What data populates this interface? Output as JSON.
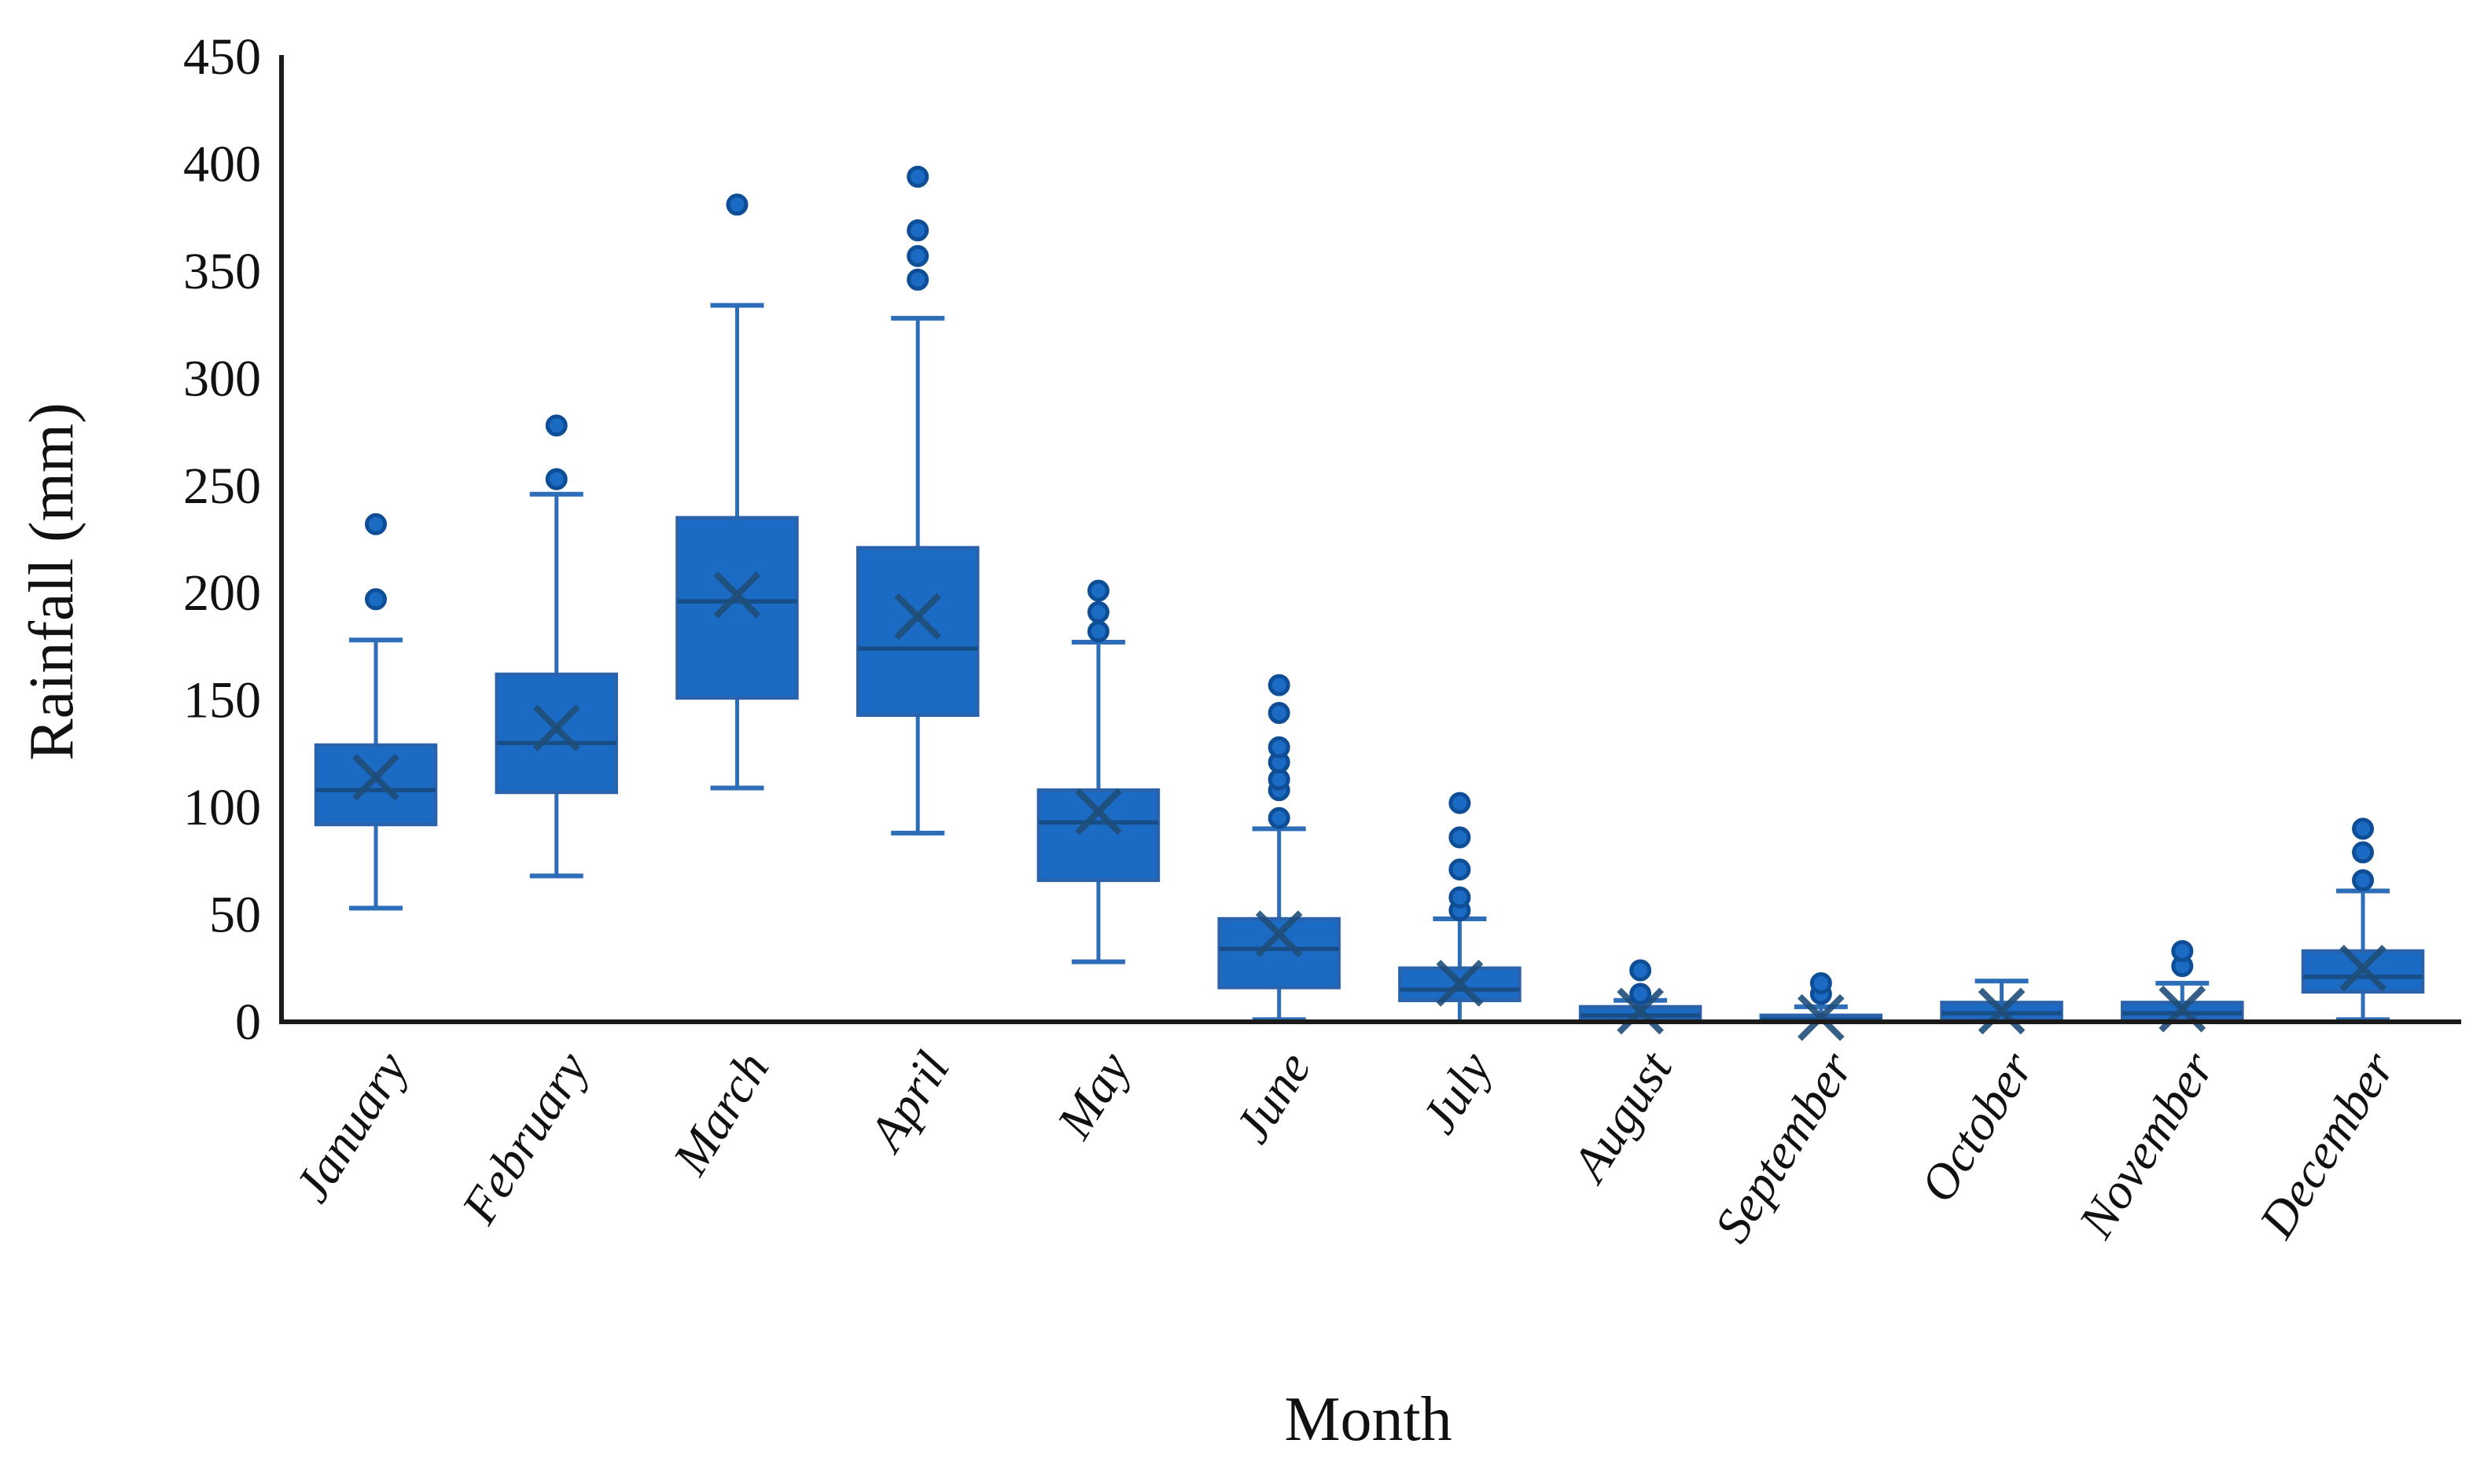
{
  "chart_data": {
    "type": "boxplot",
    "title": "",
    "xlabel": "Month",
    "ylabel": "Rainfall (mm)",
    "ylim": [
      0,
      450
    ],
    "ytick_interval": 50,
    "yticks": [
      0,
      50,
      100,
      150,
      200,
      250,
      300,
      350,
      400,
      450
    ],
    "grid": false,
    "legend": "none",
    "categories": [
      "January",
      "February",
      "March",
      "April",
      "May",
      "June",
      "July",
      "August",
      "September",
      "October",
      "November",
      "December"
    ],
    "series": [
      {
        "month": "January",
        "whisker_low": 53,
        "q1": 92,
        "median": 108,
        "mean": 114,
        "q3": 129,
        "whisker_high": 178,
        "outliers": [
          197,
          232
        ]
      },
      {
        "month": "February",
        "whisker_low": 68,
        "q1": 107,
        "median": 130,
        "mean": 137,
        "q3": 162,
        "whisker_high": 246,
        "outliers": [
          253,
          278
        ]
      },
      {
        "month": "March",
        "whisker_low": 109,
        "q1": 151,
        "median": 196,
        "mean": 199,
        "q3": 235,
        "whisker_high": 334,
        "outliers": [
          381
        ]
      },
      {
        "month": "April",
        "whisker_low": 88,
        "q1": 143,
        "median": 174,
        "mean": 189,
        "q3": 221,
        "whisker_high": 328,
        "outliers": [
          346,
          357,
          369,
          394
        ]
      },
      {
        "month": "May",
        "whisker_low": 28,
        "q1": 66,
        "median": 93,
        "mean": 98,
        "q3": 108,
        "whisker_high": 177,
        "outliers": [
          182,
          191,
          201
        ]
      },
      {
        "month": "June",
        "whisker_low": 1,
        "q1": 16,
        "median": 34,
        "mean": 41,
        "q3": 48,
        "whisker_high": 90,
        "outliers": [
          95,
          108,
          113,
          121,
          128,
          144,
          157
        ]
      },
      {
        "month": "July",
        "whisker_low": 0,
        "q1": 10,
        "median": 15,
        "mean": 18,
        "q3": 25,
        "whisker_high": 48,
        "outliers": [
          52,
          58,
          71,
          86,
          102
        ]
      },
      {
        "month": "August",
        "whisker_low": 0,
        "q1": 1,
        "median": 3,
        "mean": 5,
        "q3": 7,
        "whisker_high": 10,
        "outliers": [
          13,
          24
        ]
      },
      {
        "month": "September",
        "whisker_low": 0,
        "q1": 0,
        "median": 1,
        "mean": 2,
        "q3": 3,
        "whisker_high": 7,
        "outliers": [
          13,
          18
        ]
      },
      {
        "month": "October",
        "whisker_low": 0,
        "q1": 1,
        "median": 4,
        "mean": 5,
        "q3": 9,
        "whisker_high": 19,
        "outliers": []
      },
      {
        "month": "November",
        "whisker_low": 0,
        "q1": 1,
        "median": 4,
        "mean": 6,
        "q3": 9,
        "whisker_high": 18,
        "outliers": [
          26,
          33
        ]
      },
      {
        "month": "December",
        "whisker_low": 1,
        "q1": 14,
        "median": 21,
        "mean": 25,
        "q3": 33,
        "whisker_high": 61,
        "outliers": [
          66,
          79,
          90
        ]
      }
    ],
    "colors": {
      "box_fill": "#1B6BC4",
      "box_border": "#2A62AC",
      "whisker": "#2E6DB8",
      "median_line": "#17497E",
      "mean_marker": "#1F4E79",
      "outlier_fill": "#1B6BC4",
      "outlier_border": "#0E4E96",
      "axis": "#1a1a1a",
      "text": "#111111"
    }
  }
}
